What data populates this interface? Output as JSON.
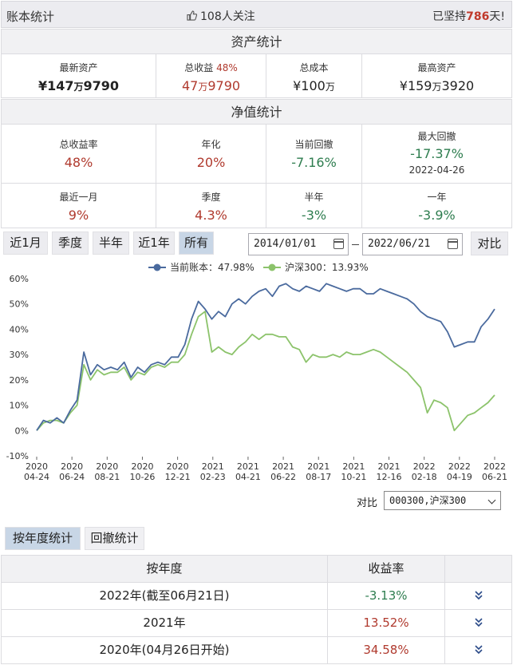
{
  "header": {
    "title": "账本统计",
    "followers": "108人关注",
    "persist_prefix": "已坚持",
    "persist_days": "786",
    "persist_suffix": "天!"
  },
  "assets": {
    "section_title": "资产统计",
    "latest_label": "最新资产",
    "latest_value_a": "¥147",
    "latest_value_b": "万",
    "latest_value_c": "9790",
    "profit_label": "总收益",
    "profit_pct": "48%",
    "profit_value_a": "47",
    "profit_value_b": "万",
    "profit_value_c": "9790",
    "cost_label": "总成本",
    "cost_value_a": "¥100",
    "cost_value_b": "万",
    "peak_label": "最高资产",
    "peak_value_a": "¥159",
    "peak_value_b": "万",
    "peak_value_c": "3920"
  },
  "nav": {
    "section_title": "净值统计",
    "total_return_label": "总收益率",
    "total_return": "48%",
    "annual_label": "年化",
    "annual": "20%",
    "drawdown_label": "当前回撤",
    "drawdown": "-7.16%",
    "max_dd_label": "最大回撤",
    "max_dd": "-17.37%",
    "max_dd_date": "2022-04-26",
    "month_label": "最近一月",
    "month": "9%",
    "quarter_label": "季度",
    "quarter": "4.3%",
    "half_label": "半年",
    "half": "-3%",
    "year_label": "一年",
    "year": "-3.9%"
  },
  "range_buttons": [
    "近1月",
    "季度",
    "半年",
    "近1年",
    "所有"
  ],
  "active_range": "所有",
  "date_from": "2014/01/01",
  "date_to": "2022/06/21",
  "compare_button": "对比",
  "compare_label": "对比",
  "compare_select": "000300,沪深300",
  "tabs": [
    "按年度统计",
    "回撤统计"
  ],
  "year_table": {
    "headers": [
      "按年度",
      "收益率"
    ],
    "rows": [
      {
        "year": "2022年(截至06月21日)",
        "rate": "-3.13%",
        "sign": "neg"
      },
      {
        "year": "2021年",
        "rate": "13.52%",
        "sign": "pos"
      },
      {
        "year": "2020年(04月26日开始)",
        "rate": "34.58%",
        "sign": "pos"
      }
    ]
  },
  "colors": {
    "account_line": "#4a6a9e",
    "hs300_line": "#8cc36b",
    "red": "#b03a2e",
    "green": "#2e7d4f",
    "active_tab": "#c8d6e6"
  },
  "chart_data": {
    "type": "line",
    "legend": [
      "当前账本：47.98%",
      "沪深300：13.93%"
    ],
    "legend_position": "top-center",
    "ylim": [
      -10,
      60
    ],
    "yticks": [
      "60%",
      "50%",
      "40%",
      "30%",
      "20%",
      "10%",
      "0%",
      "-10%"
    ],
    "xticks": [
      [
        "2020",
        "04-24"
      ],
      [
        "2020",
        "06-24"
      ],
      [
        "2020",
        "08-21"
      ],
      [
        "2020",
        "10-26"
      ],
      [
        "2020",
        "12-21"
      ],
      [
        "2021",
        "02-23"
      ],
      [
        "2021",
        "04-21"
      ],
      [
        "2021",
        "06-22"
      ],
      [
        "2021",
        "08-17"
      ],
      [
        "2021",
        "10-21"
      ],
      [
        "2021",
        "12-16"
      ],
      [
        "2022",
        "02-18"
      ],
      [
        "2022",
        "04-19"
      ],
      [
        "2022",
        "06-21"
      ]
    ],
    "series": [
      {
        "name": "当前账本",
        "values": [
          0,
          4,
          3,
          5,
          3,
          8,
          12,
          31,
          22,
          26,
          24,
          25,
          24,
          27,
          21,
          25,
          23,
          26,
          27,
          26,
          29,
          29,
          34,
          44,
          51,
          48,
          44,
          47,
          45,
          50,
          52,
          50,
          53,
          55,
          56,
          53,
          57,
          58,
          56,
          55,
          57,
          56,
          55,
          58,
          57,
          56,
          55,
          56,
          56,
          54,
          54,
          56,
          55,
          54,
          53,
          52,
          50,
          47,
          45,
          44,
          43,
          39,
          33,
          34,
          35,
          35,
          41,
          44,
          48
        ]
      },
      {
        "name": "沪深300",
        "values": [
          0,
          3,
          4,
          4,
          3,
          7,
          10,
          26,
          20,
          24,
          22,
          23,
          23,
          25,
          20,
          23,
          22,
          25,
          26,
          25,
          27,
          27,
          30,
          38,
          45,
          47,
          31,
          33,
          31,
          30,
          33,
          35,
          38,
          36,
          38,
          38,
          37,
          37,
          33,
          32,
          27,
          30,
          29,
          29,
          30,
          29,
          31,
          30,
          30,
          31,
          32,
          31,
          29,
          27,
          25,
          23,
          20,
          17,
          7,
          12,
          11,
          9,
          0,
          3,
          6,
          7,
          9,
          11,
          14
        ]
      }
    ]
  }
}
